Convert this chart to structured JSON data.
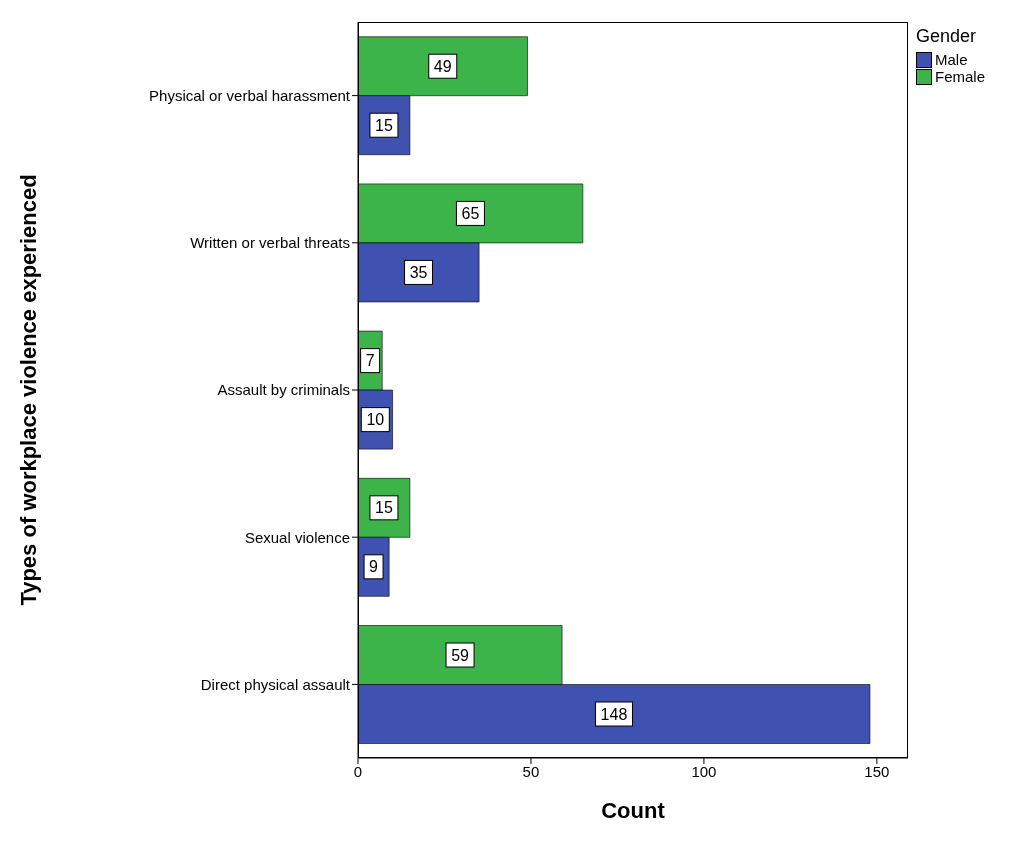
{
  "chart_data": {
    "type": "bar",
    "orientation": "horizontal",
    "xlabel": "Count",
    "ylabel": "Types of workplace violence experienced",
    "legend_title": "Gender",
    "legend": "top right",
    "data_labels": true,
    "categories": [
      "Physical or verbal harassment",
      "Written or verbal threats",
      "Assault by criminals",
      "Sexual violence",
      "Direct physical assault"
    ],
    "series": [
      {
        "name": "Male",
        "color": "#3f51b1",
        "values": [
          15,
          35,
          10,
          9,
          148
        ]
      },
      {
        "name": "Female",
        "color": "#3cb44a",
        "values": [
          49,
          65,
          7,
          15,
          59
        ]
      }
    ],
    "xlim": [
      0,
      159
    ],
    "xticks": [
      0,
      50,
      100,
      150
    ]
  }
}
